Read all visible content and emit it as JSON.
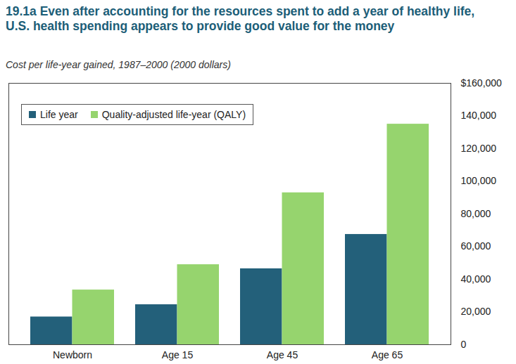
{
  "chart_data": {
    "type": "bar",
    "title": "19.1a Even after accounting for the resources spent to add a year of healthy life, U.S. health spending appears to provide good value for the money",
    "subtitle": "Cost per life-year gained, 1987–2000 (2000 dollars)",
    "categories": [
      "Newborn",
      "Age 15",
      "Age 45",
      "Age 65"
    ],
    "series": [
      {
        "name": "Life year",
        "color": "#23607a",
        "values": [
          17000,
          24500,
          46500,
          67500
        ]
      },
      {
        "name": "Quality-adjusted life-year (QALY)",
        "color": "#96d46e",
        "values": [
          33500,
          49000,
          93000,
          135000
        ]
      }
    ],
    "ylim": [
      0,
      160000
    ],
    "yticks": [
      0,
      {
        "value": 20000,
        "label": "20,000"
      },
      {
        "value": 40000,
        "label": "40,000"
      },
      {
        "value": 60000,
        "label": "60,000"
      },
      {
        "value": 80000,
        "label": "80,000"
      },
      {
        "value": 100000,
        "label": "100,000"
      },
      {
        "value": 120000,
        "label": "120,000"
      },
      {
        "value": 140000,
        "label": "140,000"
      },
      {
        "value": 160000,
        "label": "$160,000"
      }
    ],
    "grid": false,
    "legend": "upper left"
  }
}
